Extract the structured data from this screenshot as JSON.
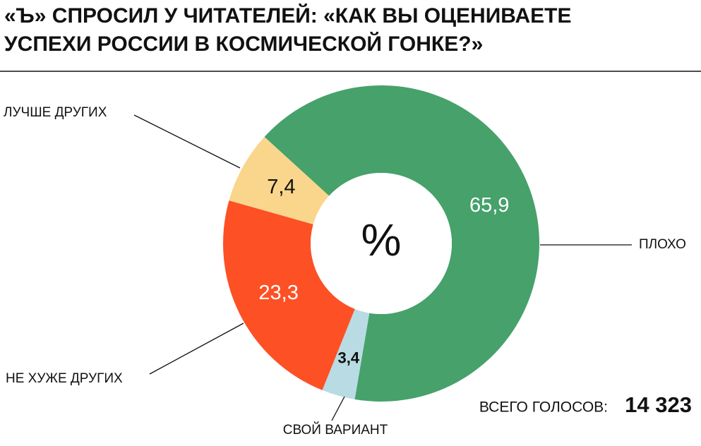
{
  "chart_data": {
    "type": "donut",
    "title": [
      "«Ъ» СПРОСИЛ У ЧИТАТЕЛЕЙ: «КАК ВЫ ОЦЕНИВАЕТЕ",
      "УСПЕХИ РОССИИ В КОСМИЧЕСКОЙ ГОНКЕ?»"
    ],
    "center_label": "%",
    "categories": [
      "ПЛОХО",
      "СВОЙ ВАРИАНТ",
      "НЕ ХУЖЕ ДРУГИХ",
      "ЛУЧШЕ ДРУГИХ"
    ],
    "values": [
      65.9,
      3.4,
      23.3,
      7.4
    ],
    "value_labels": [
      "65,9",
      "3,4",
      "23,3",
      "7,4"
    ],
    "colors": [
      "#46a16b",
      "#b9dbe3",
      "#fd5025",
      "#f9d68b"
    ],
    "total_label": "ВСЕГО ГОЛОСОВ:",
    "total_value": "14 323"
  }
}
